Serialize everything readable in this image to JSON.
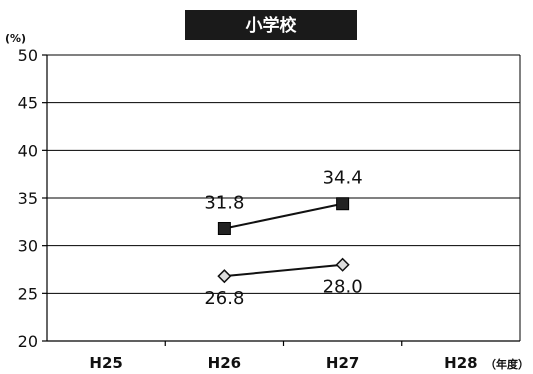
{
  "chart_data": {
    "type": "line",
    "title": "小学校",
    "y_unit": "(%)",
    "x_unit": "（年度）",
    "categories": [
      "H25",
      "H26",
      "H27",
      "H28"
    ],
    "y_ticks": [
      20,
      25,
      30,
      35,
      40,
      45,
      50
    ],
    "ylim": [
      20,
      50
    ],
    "grid": true,
    "series": [
      {
        "marker": "square",
        "values": [
          null,
          31.8,
          34.4,
          null
        ],
        "labels": [
          null,
          "31.8",
          "34.4",
          null
        ]
      },
      {
        "marker": "diamond",
        "values": [
          null,
          26.8,
          28.0,
          null
        ],
        "labels": [
          null,
          "26.8",
          "28.0",
          null
        ]
      }
    ]
  }
}
